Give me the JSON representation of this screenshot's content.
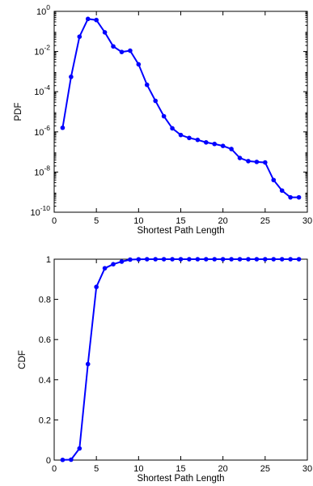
{
  "chart_data": [
    {
      "type": "line",
      "xlabel": "Shortest Path Length",
      "ylabel": "PDF",
      "yscale": "log",
      "xlim": [
        0,
        30
      ],
      "ylim": [
        1e-10,
        1
      ],
      "grid": false,
      "color": "#0000ff",
      "x_ticks": [
        0,
        5,
        10,
        15,
        20,
        25,
        30
      ],
      "y_ticks": [
        {
          "value": 1e-10,
          "base": "10",
          "exp": "-10"
        },
        {
          "value": 1e-08,
          "base": "10",
          "exp": "-8"
        },
        {
          "value": 1e-06,
          "base": "10",
          "exp": "-6"
        },
        {
          "value": 0.0001,
          "base": "10",
          "exp": "-4"
        },
        {
          "value": 0.01,
          "base": "10",
          "exp": "-2"
        },
        {
          "value": 1,
          "base": "10",
          "exp": "0"
        }
      ],
      "series": [
        {
          "x": [
            1,
            2,
            3,
            4,
            5,
            6,
            7,
            8,
            9,
            10,
            11,
            12,
            13,
            14,
            15,
            16,
            17,
            18,
            19,
            20,
            21,
            22,
            23,
            24,
            25,
            26,
            27,
            28,
            29
          ],
          "y": [
            1.6e-06,
            0.00055,
            0.055,
            0.42,
            0.37,
            0.09,
            0.018,
            0.0095,
            0.011,
            0.0023,
            0.00022,
            3.5e-05,
            6e-06,
            1.5e-06,
            7e-07,
            5e-07,
            4e-07,
            3e-07,
            2.5e-07,
            2e-07,
            1.4e-07,
            5e-08,
            3.5e-08,
            3.2e-08,
            3e-08,
            4e-09,
            1.2e-09,
            5.5e-10,
            5.5e-10
          ]
        }
      ]
    },
    {
      "type": "line",
      "xlabel": "Shortest Path Length",
      "ylabel": "CDF",
      "xlim": [
        0,
        30
      ],
      "ylim": [
        0,
        1
      ],
      "grid": false,
      "color": "#0000ff",
      "x_ticks": [
        0,
        5,
        10,
        15,
        20,
        25,
        30
      ],
      "y_ticks": [
        0,
        0.2,
        0.4,
        0.6,
        0.8,
        1
      ],
      "y_tick_labels": [
        "0",
        "0.2",
        "0.4",
        "0.6",
        "0.8",
        "1"
      ],
      "series": [
        {
          "x": [
            1,
            2,
            3,
            4,
            5,
            6,
            7,
            8,
            9,
            10,
            11,
            12,
            13,
            14,
            15,
            16,
            17,
            18,
            19,
            20,
            21,
            22,
            23,
            24,
            25,
            26,
            27,
            28,
            29
          ],
          "y": [
            0.001,
            0.002,
            0.058,
            0.478,
            0.862,
            0.955,
            0.975,
            0.988,
            0.998,
            0.9995,
            1,
            1,
            1,
            1,
            1,
            1,
            1,
            1,
            1,
            1,
            1,
            1,
            1,
            1,
            1,
            1,
            1,
            1,
            1
          ]
        }
      ]
    }
  ]
}
